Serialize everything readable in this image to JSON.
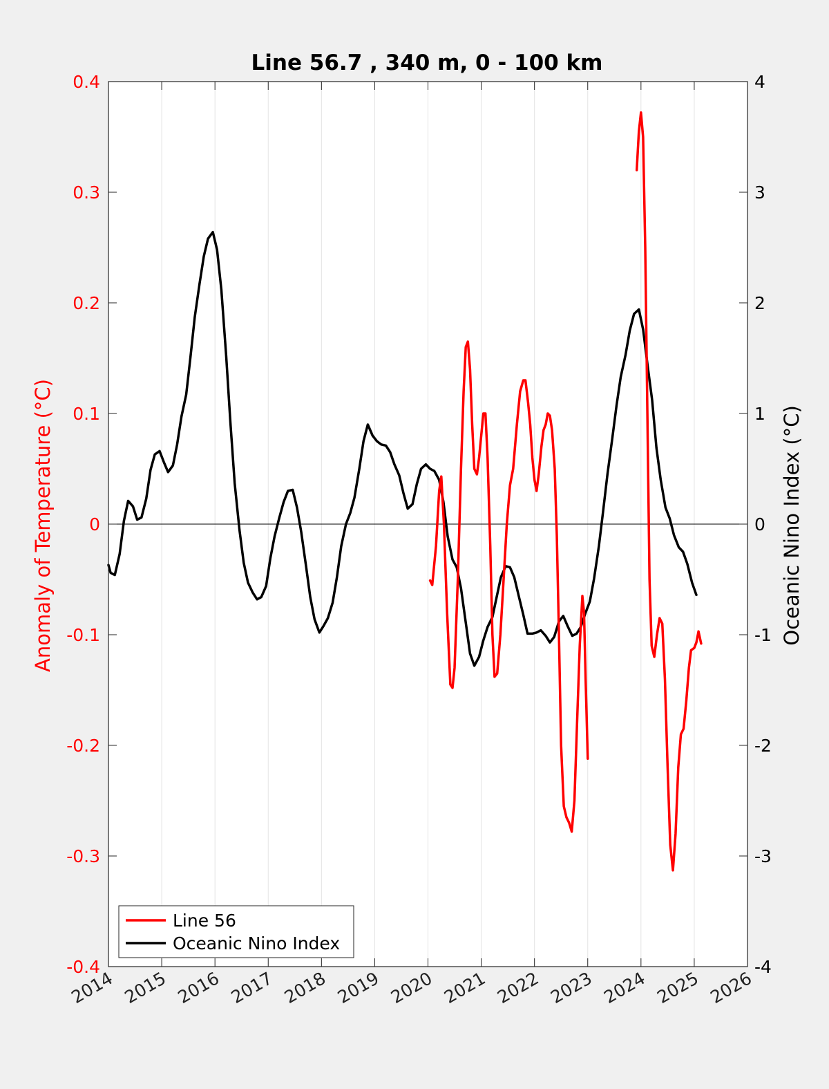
{
  "chart_data": {
    "type": "line",
    "title": "Line 56.7 , 340 m, 0 - 100 km",
    "ylabel_left": "Anomaly of Temperature (°C)",
    "ylabel_right": "Oceanic Nino Index (°C)",
    "xlim": [
      2014,
      2026
    ],
    "ylim_left": [
      -0.4,
      0.4
    ],
    "ylim_right": [
      -4,
      4
    ],
    "x_ticks": [
      "2014",
      "2015",
      "2016",
      "2017",
      "2018",
      "2019",
      "2020",
      "2021",
      "2022",
      "2023",
      "2024",
      "2025",
      "2026"
    ],
    "y_left_ticks": [
      "0.4",
      "0.3",
      "0.2",
      "0.1",
      "0",
      "-0.1",
      "-0.2",
      "-0.3",
      "-0.4"
    ],
    "y_right_ticks": [
      "4",
      "3",
      "2",
      "1",
      "0",
      "-1",
      "-2",
      "-3",
      "-4"
    ],
    "grid": "vertical",
    "legend_position": "bottom-left",
    "series": [
      {
        "name": "Line 56",
        "axis": "left",
        "color": "#ff0000",
        "segments": [
          [
            [
              2020.04,
              -0.051
            ],
            [
              2020.08,
              -0.055
            ],
            [
              2020.15,
              -0.02
            ],
            [
              2020.21,
              0.03
            ],
            [
              2020.25,
              0.043
            ],
            [
              2020.3,
              0.0
            ],
            [
              2020.36,
              -0.08
            ],
            [
              2020.42,
              -0.145
            ],
            [
              2020.46,
              -0.148
            ],
            [
              2020.5,
              -0.13
            ],
            [
              2020.56,
              -0.05
            ],
            [
              2020.62,
              0.05
            ],
            [
              2020.67,
              0.12
            ],
            [
              2020.71,
              0.16
            ],
            [
              2020.75,
              0.165
            ],
            [
              2020.79,
              0.14
            ],
            [
              2020.83,
              0.09
            ],
            [
              2020.87,
              0.05
            ],
            [
              2020.92,
              0.045
            ],
            [
              2020.96,
              0.06
            ],
            [
              2021.0,
              0.08
            ],
            [
              2021.04,
              0.1
            ],
            [
              2021.08,
              0.1
            ],
            [
              2021.12,
              0.06
            ],
            [
              2021.17,
              -0.02
            ],
            [
              2021.21,
              -0.1
            ],
            [
              2021.25,
              -0.138
            ],
            [
              2021.3,
              -0.135
            ],
            [
              2021.36,
              -0.1
            ],
            [
              2021.42,
              -0.05
            ],
            [
              2021.48,
              0.0
            ],
            [
              2021.54,
              0.035
            ],
            [
              2021.6,
              0.05
            ],
            [
              2021.67,
              0.09
            ],
            [
              2021.73,
              0.12
            ],
            [
              2021.79,
              0.13
            ],
            [
              2021.83,
              0.13
            ],
            [
              2021.88,
              0.11
            ],
            [
              2021.92,
              0.09
            ],
            [
              2021.96,
              0.06
            ],
            [
              2022.0,
              0.04
            ],
            [
              2022.04,
              0.03
            ],
            [
              2022.08,
              0.045
            ],
            [
              2022.13,
              0.07
            ],
            [
              2022.17,
              0.085
            ],
            [
              2022.21,
              0.09
            ],
            [
              2022.25,
              0.1
            ],
            [
              2022.29,
              0.098
            ],
            [
              2022.33,
              0.085
            ],
            [
              2022.38,
              0.05
            ],
            [
              2022.42,
              -0.01
            ],
            [
              2022.46,
              -0.1
            ],
            [
              2022.5,
              -0.2
            ],
            [
              2022.55,
              -0.255
            ],
            [
              2022.6,
              -0.265
            ],
            [
              2022.65,
              -0.27
            ],
            [
              2022.7,
              -0.278
            ],
            [
              2022.75,
              -0.25
            ],
            [
              2022.8,
              -0.18
            ],
            [
              2022.85,
              -0.11
            ],
            [
              2022.9,
              -0.065
            ],
            [
              2022.93,
              -0.08
            ],
            [
              2022.96,
              -0.14
            ],
            [
              2023.0,
              -0.212
            ]
          ],
          [
            [
              2023.92,
              0.32
            ],
            [
              2023.96,
              0.355
            ],
            [
              2024.0,
              0.372
            ],
            [
              2024.04,
              0.35
            ],
            [
              2024.08,
              0.25
            ],
            [
              2024.12,
              0.1
            ],
            [
              2024.16,
              -0.05
            ],
            [
              2024.2,
              -0.11
            ],
            [
              2024.25,
              -0.12
            ],
            [
              2024.3,
              -0.1
            ],
            [
              2024.35,
              -0.085
            ],
            [
              2024.4,
              -0.09
            ],
            [
              2024.45,
              -0.14
            ],
            [
              2024.5,
              -0.22
            ],
            [
              2024.55,
              -0.29
            ],
            [
              2024.6,
              -0.313
            ],
            [
              2024.65,
              -0.28
            ],
            [
              2024.7,
              -0.22
            ],
            [
              2024.75,
              -0.19
            ],
            [
              2024.8,
              -0.185
            ],
            [
              2024.85,
              -0.16
            ],
            [
              2024.9,
              -0.13
            ],
            [
              2024.94,
              -0.114
            ],
            [
              2025.0,
              -0.112
            ],
            [
              2025.04,
              -0.107
            ],
            [
              2025.08,
              -0.097
            ],
            [
              2025.13,
              -0.108
            ]
          ]
        ]
      },
      {
        "name": "Oceanic Nino Index",
        "axis": "right",
        "color": "#000000",
        "points": [
          [
            2014.0,
            -0.37
          ],
          [
            2014.04,
            -0.44
          ],
          [
            2014.12,
            -0.46
          ],
          [
            2014.21,
            -0.27
          ],
          [
            2014.29,
            0.03
          ],
          [
            2014.37,
            0.21
          ],
          [
            2014.46,
            0.16
          ],
          [
            2014.54,
            0.04
          ],
          [
            2014.62,
            0.06
          ],
          [
            2014.71,
            0.23
          ],
          [
            2014.79,
            0.49
          ],
          [
            2014.87,
            0.63
          ],
          [
            2014.96,
            0.66
          ],
          [
            2015.04,
            0.56
          ],
          [
            2015.12,
            0.47
          ],
          [
            2015.21,
            0.53
          ],
          [
            2015.29,
            0.72
          ],
          [
            2015.37,
            0.97
          ],
          [
            2015.46,
            1.17
          ],
          [
            2015.54,
            1.51
          ],
          [
            2015.62,
            1.87
          ],
          [
            2015.71,
            2.17
          ],
          [
            2015.79,
            2.42
          ],
          [
            2015.87,
            2.58
          ],
          [
            2015.96,
            2.64
          ],
          [
            2016.04,
            2.48
          ],
          [
            2016.12,
            2.12
          ],
          [
            2016.21,
            1.52
          ],
          [
            2016.29,
            0.92
          ],
          [
            2016.37,
            0.37
          ],
          [
            2016.46,
            -0.05
          ],
          [
            2016.54,
            -0.35
          ],
          [
            2016.62,
            -0.53
          ],
          [
            2016.71,
            -0.62
          ],
          [
            2016.79,
            -0.68
          ],
          [
            2016.87,
            -0.66
          ],
          [
            2016.96,
            -0.56
          ],
          [
            2017.04,
            -0.31
          ],
          [
            2017.12,
            -0.11
          ],
          [
            2017.21,
            0.06
          ],
          [
            2017.29,
            0.2
          ],
          [
            2017.37,
            0.3
          ],
          [
            2017.46,
            0.31
          ],
          [
            2017.54,
            0.15
          ],
          [
            2017.62,
            -0.07
          ],
          [
            2017.71,
            -0.38
          ],
          [
            2017.79,
            -0.66
          ],
          [
            2017.87,
            -0.86
          ],
          [
            2017.96,
            -0.98
          ],
          [
            2018.04,
            -0.92
          ],
          [
            2018.12,
            -0.85
          ],
          [
            2018.21,
            -0.71
          ],
          [
            2018.29,
            -0.48
          ],
          [
            2018.37,
            -0.2
          ],
          [
            2018.46,
            0.0
          ],
          [
            2018.54,
            0.1
          ],
          [
            2018.62,
            0.24
          ],
          [
            2018.71,
            0.5
          ],
          [
            2018.79,
            0.75
          ],
          [
            2018.87,
            0.9
          ],
          [
            2018.96,
            0.8
          ],
          [
            2019.04,
            0.75
          ],
          [
            2019.12,
            0.72
          ],
          [
            2019.21,
            0.71
          ],
          [
            2019.29,
            0.65
          ],
          [
            2019.37,
            0.54
          ],
          [
            2019.46,
            0.44
          ],
          [
            2019.54,
            0.28
          ],
          [
            2019.62,
            0.14
          ],
          [
            2019.71,
            0.18
          ],
          [
            2019.79,
            0.36
          ],
          [
            2019.87,
            0.5
          ],
          [
            2019.96,
            0.54
          ],
          [
            2020.04,
            0.5
          ],
          [
            2020.12,
            0.48
          ],
          [
            2020.21,
            0.4
          ],
          [
            2020.29,
            0.2
          ],
          [
            2020.37,
            -0.11
          ],
          [
            2020.46,
            -0.32
          ],
          [
            2020.54,
            -0.39
          ],
          [
            2020.62,
            -0.58
          ],
          [
            2020.71,
            -0.89
          ],
          [
            2020.79,
            -1.17
          ],
          [
            2020.87,
            -1.28
          ],
          [
            2020.96,
            -1.2
          ],
          [
            2021.04,
            -1.05
          ],
          [
            2021.12,
            -0.93
          ],
          [
            2021.21,
            -0.84
          ],
          [
            2021.29,
            -0.66
          ],
          [
            2021.37,
            -0.48
          ],
          [
            2021.46,
            -0.38
          ],
          [
            2021.54,
            -0.39
          ],
          [
            2021.62,
            -0.48
          ],
          [
            2021.71,
            -0.66
          ],
          [
            2021.79,
            -0.82
          ],
          [
            2021.87,
            -0.99
          ],
          [
            2021.96,
            -0.99
          ],
          [
            2022.04,
            -0.98
          ],
          [
            2022.12,
            -0.96
          ],
          [
            2022.21,
            -1.01
          ],
          [
            2022.29,
            -1.07
          ],
          [
            2022.37,
            -1.02
          ],
          [
            2022.46,
            -0.88
          ],
          [
            2022.54,
            -0.83
          ],
          [
            2022.62,
            -0.92
          ],
          [
            2022.71,
            -1.01
          ],
          [
            2022.79,
            -0.99
          ],
          [
            2022.87,
            -0.93
          ],
          [
            2022.96,
            -0.8
          ],
          [
            2023.04,
            -0.7
          ],
          [
            2023.12,
            -0.49
          ],
          [
            2023.21,
            -0.2
          ],
          [
            2023.29,
            0.12
          ],
          [
            2023.37,
            0.45
          ],
          [
            2023.46,
            0.77
          ],
          [
            2023.54,
            1.07
          ],
          [
            2023.62,
            1.33
          ],
          [
            2023.71,
            1.53
          ],
          [
            2023.79,
            1.75
          ],
          [
            2023.87,
            1.9
          ],
          [
            2023.96,
            1.94
          ],
          [
            2024.04,
            1.76
          ],
          [
            2024.12,
            1.45
          ],
          [
            2024.21,
            1.12
          ],
          [
            2024.29,
            0.69
          ],
          [
            2024.37,
            0.4
          ],
          [
            2024.46,
            0.15
          ],
          [
            2024.54,
            0.05
          ],
          [
            2024.62,
            -0.1
          ],
          [
            2024.71,
            -0.21
          ],
          [
            2024.79,
            -0.25
          ],
          [
            2024.87,
            -0.36
          ],
          [
            2024.96,
            -0.53
          ],
          [
            2025.04,
            -0.64
          ]
        ]
      }
    ]
  }
}
